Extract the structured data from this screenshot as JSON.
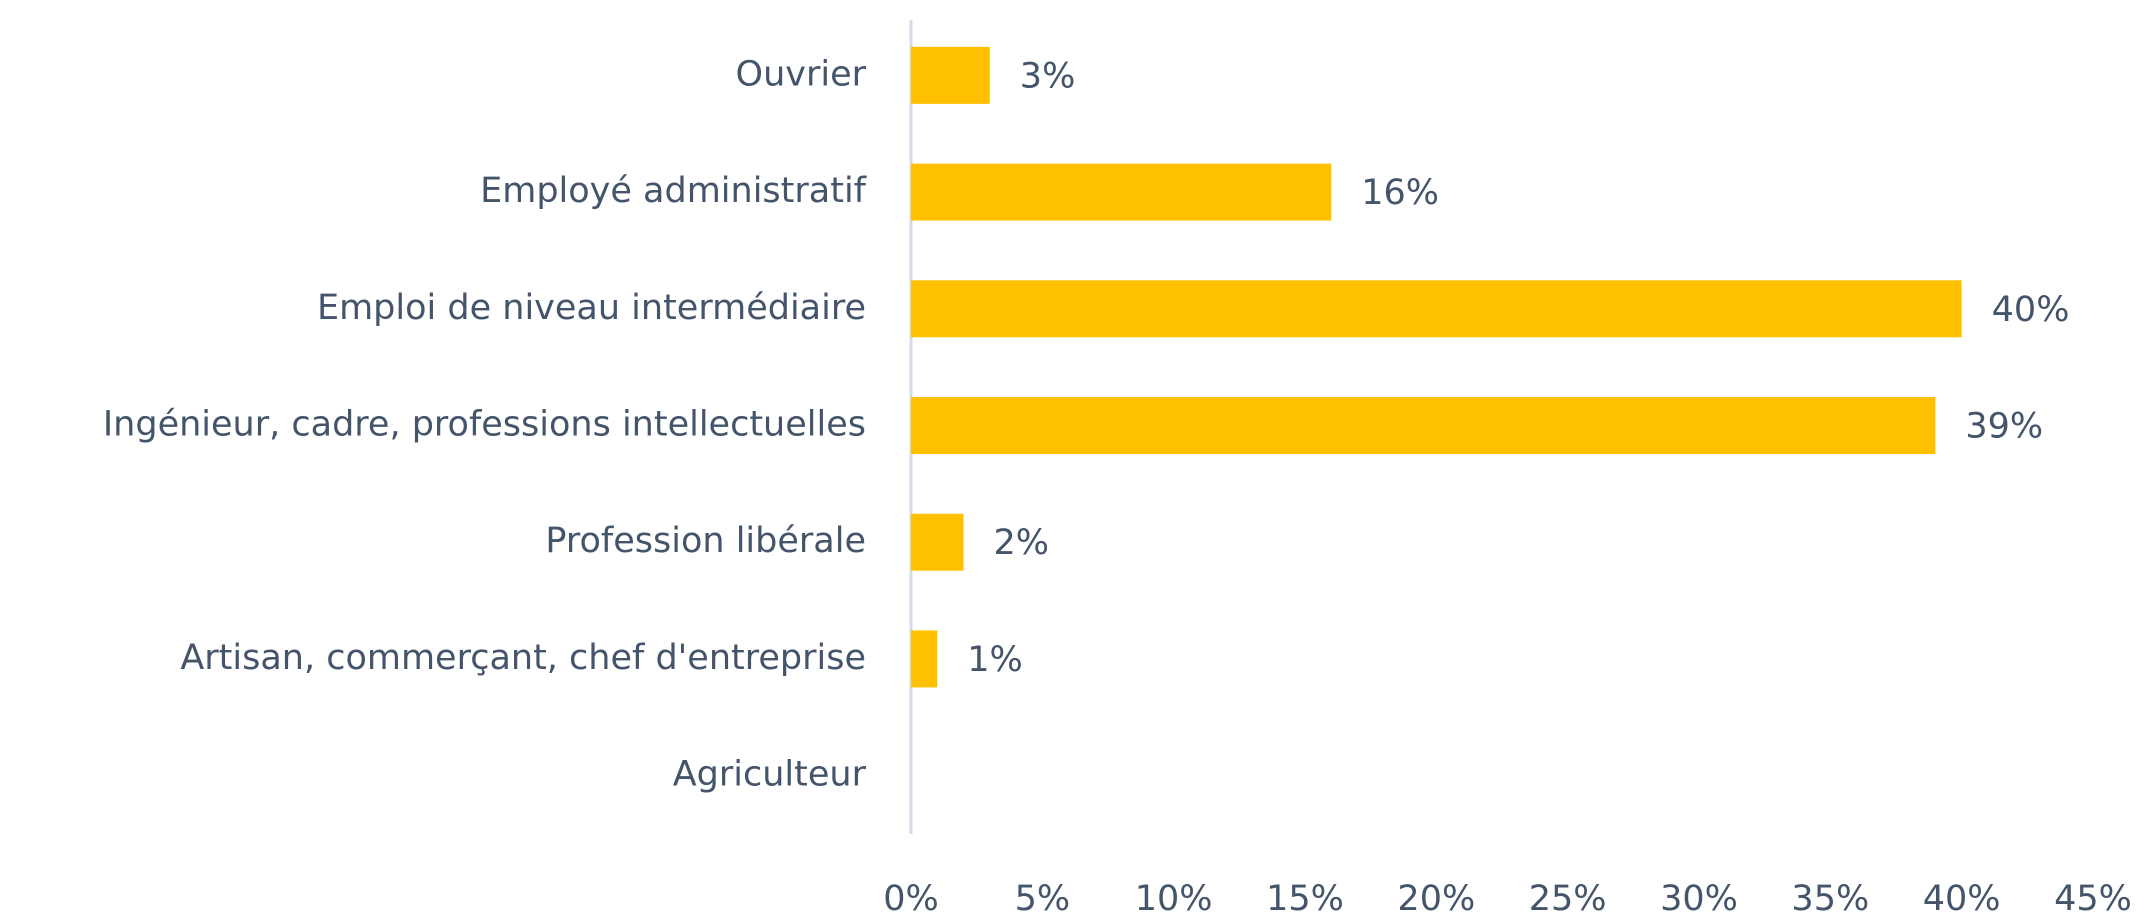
{
  "chart_data": {
    "type": "hbar",
    "categories": [
      "Ouvrier",
      "Employé administratif",
      "Emploi de niveau intermédiaire",
      "Ingénieur, cadre, professions intellectuelles",
      "Profession libérale",
      "Artisan, commerçant, chef d'entreprise",
      "Agriculteur"
    ],
    "values": [
      3,
      16,
      40,
      39,
      2,
      1,
      0
    ],
    "value_labels": [
      "3%",
      "16%",
      "40%",
      "39%",
      "2%",
      "1%",
      null
    ],
    "color": "#ffc000",
    "xlim": [
      0,
      45
    ],
    "xticks": [
      {
        "value": 0,
        "label": "0%"
      },
      {
        "value": 5,
        "label": "5%"
      },
      {
        "value": 10,
        "label": "10%"
      },
      {
        "value": 15,
        "label": "15%"
      },
      {
        "value": 20,
        "label": "20%"
      },
      {
        "value": 25,
        "label": "25%"
      },
      {
        "value": 30,
        "label": "30%"
      },
      {
        "value": 35,
        "label": "35%"
      },
      {
        "value": 40,
        "label": "40%"
      },
      {
        "value": 45,
        "label": "45%"
      }
    ],
    "grid": false
  }
}
